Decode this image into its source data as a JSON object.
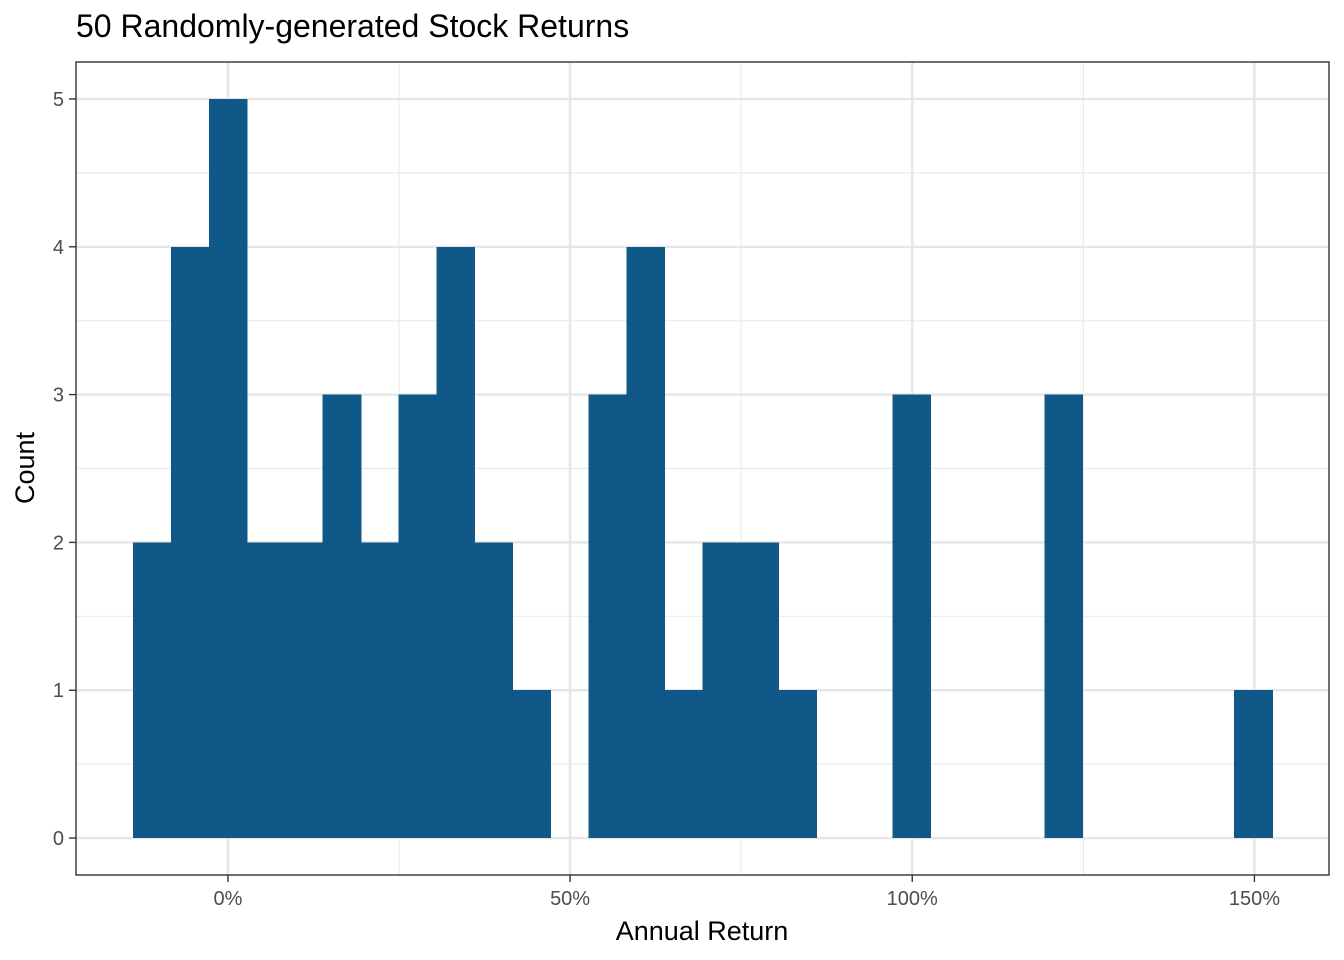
{
  "chart_data": {
    "type": "bar",
    "title": "50 Randomly-generated Stock Returns",
    "xlabel": "Annual Return",
    "ylabel": "Count",
    "bin_width": 5.55,
    "bins": [
      {
        "x0": -13.9,
        "x1": -8.35,
        "count": 2
      },
      {
        "x0": -8.35,
        "x1": -2.8,
        "count": 4
      },
      {
        "x0": -2.8,
        "x1": 2.75,
        "count": 5
      },
      {
        "x0": 2.75,
        "x1": 8.3,
        "count": 2
      },
      {
        "x0": 8.3,
        "x1": 13.85,
        "count": 2
      },
      {
        "x0": 13.85,
        "x1": 19.4,
        "count": 3
      },
      {
        "x0": 19.4,
        "x1": 24.95,
        "count": 2
      },
      {
        "x0": 24.95,
        "x1": 30.5,
        "count": 3
      },
      {
        "x0": 30.5,
        "x1": 36.05,
        "count": 4
      },
      {
        "x0": 36.05,
        "x1": 41.6,
        "count": 2
      },
      {
        "x0": 41.6,
        "x1": 47.15,
        "count": 1
      },
      {
        "x0": 47.15,
        "x1": 52.7,
        "count": 0
      },
      {
        "x0": 52.7,
        "x1": 58.25,
        "count": 3
      },
      {
        "x0": 58.25,
        "x1": 63.8,
        "count": 4
      },
      {
        "x0": 63.8,
        "x1": 69.35,
        "count": 1
      },
      {
        "x0": 69.35,
        "x1": 74.9,
        "count": 2
      },
      {
        "x0": 74.9,
        "x1": 80.45,
        "count": 2
      },
      {
        "x0": 80.45,
        "x1": 86.0,
        "count": 1
      },
      {
        "x0": 86.0,
        "x1": 91.55,
        "count": 0
      },
      {
        "x0": 91.55,
        "x1": 97.1,
        "count": 0
      },
      {
        "x0": 97.1,
        "x1": 102.65,
        "count": 3
      },
      {
        "x0": 102.65,
        "x1": 108.2,
        "count": 0
      },
      {
        "x0": 108.2,
        "x1": 113.75,
        "count": 0
      },
      {
        "x0": 113.75,
        "x1": 119.3,
        "count": 0
      },
      {
        "x0": 119.3,
        "x1": 124.85,
        "count": 3
      },
      {
        "x0": 124.85,
        "x1": 130.4,
        "count": 0
      },
      {
        "x0": 130.4,
        "x1": 135.95,
        "count": 0
      },
      {
        "x0": 135.95,
        "x1": 141.5,
        "count": 0
      },
      {
        "x0": 141.5,
        "x1": 147.05,
        "count": 0
      },
      {
        "x0": 147.05,
        "x1": 152.6,
        "count": 1
      }
    ],
    "xlim": [
      -22.2,
      160.9
    ],
    "ylim": [
      -0.25,
      5.25
    ],
    "x_ticks": [
      0,
      50,
      100,
      150
    ],
    "x_tick_labels": [
      "0%",
      "50%",
      "100%",
      "150%"
    ],
    "y_ticks": [
      0,
      1,
      2,
      3,
      4,
      5
    ],
    "y_tick_labels": [
      "0",
      "1",
      "2",
      "3",
      "4",
      "5"
    ],
    "bar_color": "#105888",
    "grid": true,
    "legend": "none"
  }
}
